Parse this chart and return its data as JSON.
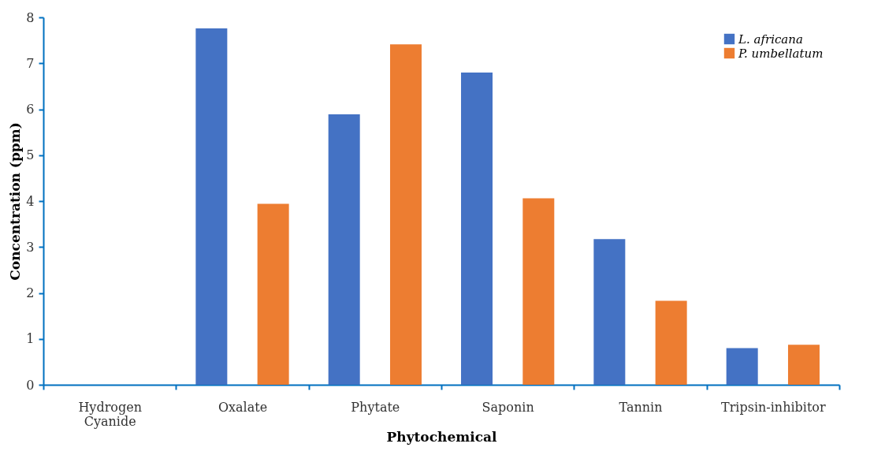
{
  "chart_data": {
    "type": "bar",
    "xlabel": "Phytochemical",
    "ylabel": "Concentration (ppm)",
    "categories": [
      "Hydrogen Cyanide",
      "Oxalate",
      "Phytate",
      "Saponin",
      "Tannin",
      "Tripsin-inhibitor"
    ],
    "series": [
      {
        "name": "L. africana",
        "color": "#4472c4",
        "values": [
          0,
          7.76,
          5.89,
          6.8,
          3.17,
          0.8
        ]
      },
      {
        "name": "P. umbellatum",
        "color": "#ed7d31",
        "values": [
          0,
          3.94,
          7.41,
          4.06,
          1.83,
          0.87
        ]
      }
    ],
    "ylim": [
      0,
      8
    ],
    "yticks": [
      0,
      1,
      2,
      3,
      4,
      5,
      6,
      7,
      8
    ],
    "grid": false,
    "legend": "top right"
  }
}
